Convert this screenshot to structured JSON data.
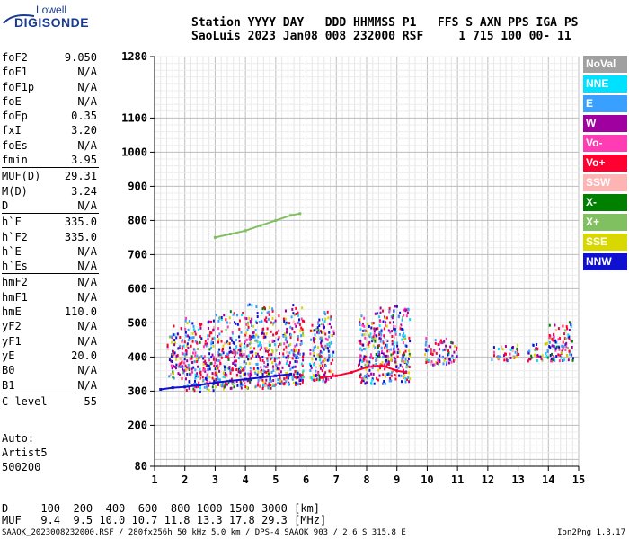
{
  "logo": {
    "line1": "Lowell",
    "line2": "DIGISONDE"
  },
  "header": {
    "labels": "Station YYYY DAY   DDD HHMMSS P1   FFS S AXN PPS IGA PS",
    "values": "SaoLuis 2023 Jan08 008 232000 RSF     1 715 100 00- 11"
  },
  "params": [
    {
      "k": "foF2",
      "v": "9.050"
    },
    {
      "k": "foF1",
      "v": "N/A"
    },
    {
      "k": "foF1p",
      "v": "N/A"
    },
    {
      "k": "foE",
      "v": "N/A"
    },
    {
      "k": "foEp",
      "v": "0.35"
    },
    {
      "k": "fxI",
      "v": "3.20"
    },
    {
      "k": "foEs",
      "v": "N/A"
    },
    {
      "k": "fmin",
      "v": "3.95"
    },
    {
      "k": "MUF(D)",
      "v": "29.31"
    },
    {
      "k": "M(D)",
      "v": "3.24"
    },
    {
      "k": "D",
      "v": "N/A"
    },
    {
      "k": "h`F",
      "v": "335.0"
    },
    {
      "k": "h`F2",
      "v": "335.0"
    },
    {
      "k": "h`E",
      "v": "N/A"
    },
    {
      "k": "h`Es",
      "v": "N/A"
    },
    {
      "k": "hmF2",
      "v": "N/A"
    },
    {
      "k": "hmF1",
      "v": "N/A"
    },
    {
      "k": "hmE",
      "v": "110.0"
    },
    {
      "k": "yF2",
      "v": "N/A"
    },
    {
      "k": "yF1",
      "v": "N/A"
    },
    {
      "k": "yE",
      "v": "20.0"
    },
    {
      "k": "B0",
      "v": "N/A"
    },
    {
      "k": "B1",
      "v": "N/A"
    },
    {
      "k": "C-level",
      "v": "55"
    }
  ],
  "auto": [
    "Auto:",
    "Artist5",
    "500200"
  ],
  "legend": [
    {
      "label": "NoVal",
      "color": "#a0a0a0"
    },
    {
      "label": "NNE",
      "color": "#00e0ff"
    },
    {
      "label": "E",
      "color": "#3aa0ff"
    },
    {
      "label": "W",
      "color": "#a000a0"
    },
    {
      "label": "Vo-",
      "color": "#ff3cb4"
    },
    {
      "label": "Vo+",
      "color": "#ff0030"
    },
    {
      "label": "SSW",
      "color": "#ffb4b4"
    },
    {
      "label": "X-",
      "color": "#008000"
    },
    {
      "label": "X+",
      "color": "#80c060"
    },
    {
      "label": "SSE",
      "color": "#d8d800"
    },
    {
      "label": "NNW",
      "color": "#1010d0"
    }
  ],
  "footer": {
    "d_line": "D     100  200  400  600  800 1000 1500 3000 [km]",
    "muf_line": "MUF   9.4  9.5 10.0 10.7 11.8 13.3 17.8 29.3 [MHz]",
    "file_line": "SAAOK_2023008232000.RSF / 280fx256h 50 kHz 5.0 km / DPS-4 SAAOK 903 / 2.6 S 315.8 E",
    "version": "Ion2Png 1.3.17"
  },
  "chart_data": {
    "type": "scatter",
    "xlim": [
      1,
      15
    ],
    "ylim": [
      80,
      1280
    ],
    "x_ticks": [
      1,
      2,
      3,
      4,
      5,
      6,
      7,
      8,
      9,
      10,
      11,
      12,
      13,
      14,
      15
    ],
    "y_ticks": [
      80,
      200,
      300,
      400,
      500,
      600,
      700,
      800,
      900,
      1000,
      1100,
      1280
    ],
    "grid": true,
    "legend_position": "right",
    "traces": [
      {
        "name": "NNW",
        "points": [
          [
            1.2,
            305
          ],
          [
            1.6,
            310
          ],
          [
            2.0,
            312
          ],
          [
            2.5,
            318
          ],
          [
            3.0,
            325
          ],
          [
            3.5,
            330
          ],
          [
            4.0,
            335
          ],
          [
            4.5,
            340
          ],
          [
            5.0,
            345
          ],
          [
            5.5,
            350
          ]
        ]
      },
      {
        "name": "Vo+",
        "points": [
          [
            6.5,
            340
          ],
          [
            7.0,
            345
          ],
          [
            7.5,
            355
          ],
          [
            8.0,
            370
          ],
          [
            8.5,
            375
          ],
          [
            9.0,
            360
          ],
          [
            9.3,
            355
          ]
        ]
      },
      {
        "name": "X+",
        "points": [
          [
            3.0,
            750
          ],
          [
            3.5,
            760
          ],
          [
            4.0,
            770
          ],
          [
            4.5,
            785
          ],
          [
            5.0,
            800
          ],
          [
            5.5,
            815
          ],
          [
            5.8,
            820
          ]
        ]
      }
    ],
    "clusters": [
      {
        "x0": 1.4,
        "x1": 2.0,
        "ymin": 340,
        "ymax": 500
      },
      {
        "x0": 2.0,
        "x1": 3.0,
        "ymin": 300,
        "ymax": 520
      },
      {
        "x0": 3.0,
        "x1": 4.0,
        "ymin": 310,
        "ymax": 540
      },
      {
        "x0": 4.0,
        "x1": 5.0,
        "ymin": 310,
        "ymax": 560
      },
      {
        "x0": 5.0,
        "x1": 5.9,
        "ymin": 320,
        "ymax": 560
      },
      {
        "x0": 6.1,
        "x1": 6.9,
        "ymin": 330,
        "ymax": 540
      },
      {
        "x0": 7.7,
        "x1": 8.7,
        "ymin": 325,
        "ymax": 550
      },
      {
        "x0": 8.7,
        "x1": 9.4,
        "ymin": 330,
        "ymax": 560
      },
      {
        "x0": 9.9,
        "x1": 11.0,
        "ymin": 380,
        "ymax": 460
      },
      {
        "x0": 12.1,
        "x1": 13.0,
        "ymin": 390,
        "ymax": 440
      },
      {
        "x0": 13.3,
        "x1": 14.0,
        "ymin": 390,
        "ymax": 450
      },
      {
        "x0": 14.0,
        "x1": 14.8,
        "ymin": 390,
        "ymax": 510
      }
    ]
  }
}
